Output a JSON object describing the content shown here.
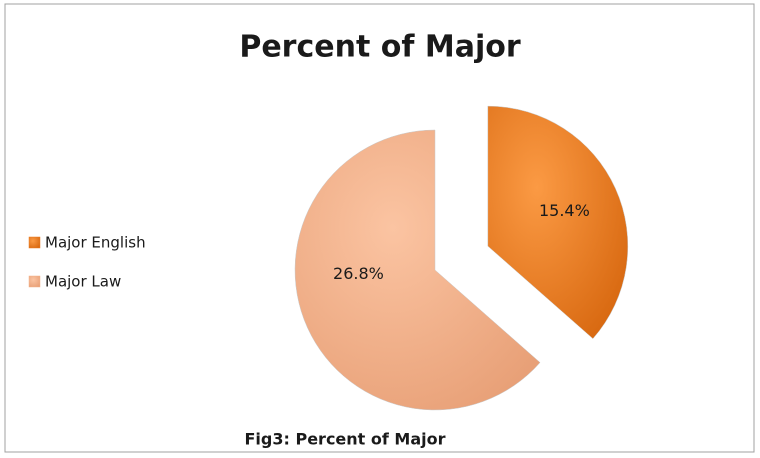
{
  "chart_data": {
    "type": "pie",
    "title": "Percent of Major",
    "caption": "Fig3: Percent of Major",
    "categories": [
      "Major English",
      "Major Law"
    ],
    "values": [
      15.4,
      26.8
    ],
    "value_labels": [
      "15.4%",
      "26.8%"
    ],
    "colors": [
      "#ea7d22",
      "#f4b28a"
    ],
    "legend": "left"
  }
}
